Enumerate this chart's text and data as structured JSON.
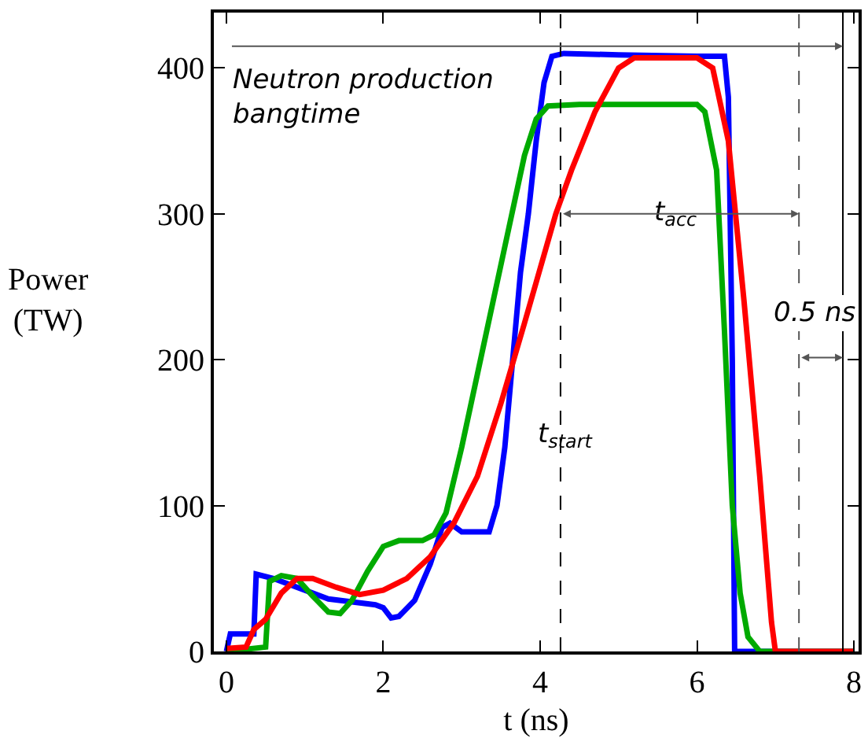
{
  "chart_data": {
    "type": "line",
    "xlabel": "t (ns)",
    "ylabel": "Power\n(TW)",
    "xlim": [
      -0.16,
      8.06
    ],
    "xticks": [
      0,
      2,
      4,
      6,
      8
    ],
    "ylim": [
      0,
      438
    ],
    "yticks": [
      0,
      100,
      200,
      300,
      400
    ],
    "marker": "none",
    "line_style": "solid",
    "series": [
      {
        "color": "#0000ff",
        "x": [
          0,
          0.05,
          0.35,
          0.38,
          0.6,
          1.0,
          1.3,
          1.6,
          1.9,
          2.0,
          2.1,
          2.2,
          2.4,
          2.6,
          2.75,
          2.85,
          3.0,
          3.35,
          3.45,
          3.55,
          3.65,
          3.75,
          3.85,
          3.95,
          4.05,
          4.15,
          4.3,
          5.0,
          6.0,
          6.35,
          6.4,
          6.45,
          6.48,
          8.0
        ],
        "values": [
          0,
          12,
          12,
          53,
          50,
          42,
          36,
          34,
          32,
          30,
          23,
          24,
          35,
          60,
          85,
          88,
          82,
          82,
          100,
          140,
          200,
          260,
          300,
          350,
          390,
          408,
          410,
          409,
          408,
          408,
          380,
          200,
          0,
          0
        ]
      },
      {
        "color": "#00aa00",
        "x": [
          0,
          0.5,
          0.55,
          0.7,
          0.9,
          1.1,
          1.3,
          1.45,
          1.6,
          1.8,
          2.0,
          2.2,
          2.5,
          2.65,
          2.8,
          3.0,
          3.2,
          3.4,
          3.6,
          3.8,
          3.95,
          4.1,
          4.5,
          6.0,
          6.1,
          6.25,
          6.35,
          6.45,
          6.55,
          6.65,
          6.8,
          8.0
        ],
        "values": [
          0,
          3,
          48,
          52,
          50,
          38,
          27,
          26,
          35,
          55,
          72,
          76,
          76,
          80,
          95,
          140,
          190,
          240,
          290,
          340,
          365,
          374,
          375,
          375,
          370,
          330,
          220,
          100,
          40,
          10,
          0,
          0
        ]
      },
      {
        "color": "#ff0000",
        "x": [
          0,
          0.25,
          0.35,
          0.5,
          0.7,
          0.9,
          1.1,
          1.4,
          1.7,
          2.0,
          2.3,
          2.6,
          2.9,
          3.2,
          3.5,
          3.8,
          4.2,
          4.4,
          4.7,
          5.0,
          5.2,
          6.0,
          6.2,
          6.4,
          6.6,
          6.8,
          6.95,
          7.0,
          8.0
        ],
        "values": [
          2,
          3,
          15,
          22,
          40,
          50,
          50,
          44,
          39,
          42,
          50,
          65,
          88,
          120,
          170,
          225,
          300,
          330,
          370,
          400,
          407,
          407,
          400,
          350,
          240,
          120,
          20,
          0,
          0
        ]
      }
    ],
    "ref_lines": [
      {
        "axis": "x",
        "value": 4.26,
        "line_style": "dashed",
        "color": "#000000"
      },
      {
        "axis": "x",
        "value": 7.3,
        "line_style": "dashed",
        "color": "#555555"
      },
      {
        "axis": "x",
        "value": 7.86,
        "line_style": "solid",
        "color": "#000000"
      }
    ],
    "annotations": [
      {
        "text": "Neutron production\nbangtime",
        "x": 7.86,
        "y": 415
      },
      {
        "text": "t$_{acc}$",
        "x": 5.73,
        "y": 300
      },
      {
        "text": "t$_{start}$",
        "x": 4.34,
        "y": 148
      },
      "0.5 ns"
    ]
  }
}
